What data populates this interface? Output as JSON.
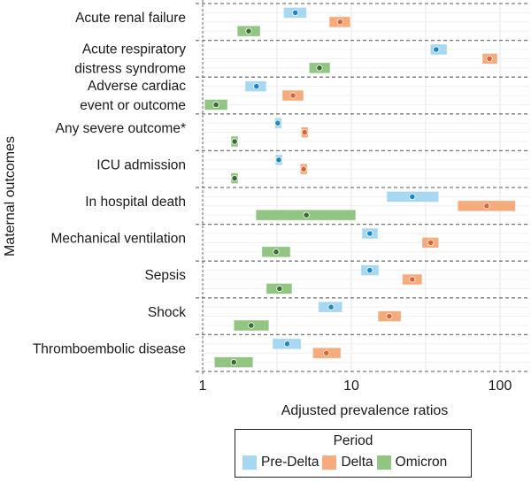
{
  "chart_data": {
    "type": "forest",
    "title": "",
    "xlabel": "Adjusted prevalence ratios",
    "ylabel": "Maternal outcomes",
    "xscale": "log",
    "xlim": [
      1,
      160
    ],
    "xticks": [
      1,
      10,
      100
    ],
    "xtick_labels": [
      "1",
      "10",
      "100"
    ],
    "minor_gridlines": [
      3.16,
      31.6
    ],
    "grid": true,
    "legend": {
      "title": "Period",
      "placement": "bottom",
      "entries": [
        "Pre-Delta",
        "Delta",
        "Omicron"
      ]
    },
    "colors": {
      "Pre-Delta": {
        "box": "#A8D7F1",
        "dot": "#1B86C9"
      },
      "Delta": {
        "box": "#F6AB7C",
        "dot": "#E0622E"
      },
      "Omicron": {
        "box": "#92C582",
        "dot": "#3A6B35"
      }
    },
    "categories": [
      {
        "label": [
          "Acute renal failure"
        ]
      },
      {
        "label": [
          "Acute respiratory",
          "distress syndrome"
        ]
      },
      {
        "label": [
          "Adverse cardiac",
          "event or outcome"
        ]
      },
      {
        "label": [
          "Any severe outcome*"
        ]
      },
      {
        "label": [
          "ICU admission"
        ]
      },
      {
        "label": [
          "In hospital death"
        ]
      },
      {
        "label": [
          "Mechanical ventilation"
        ]
      },
      {
        "label": [
          "Sepsis"
        ]
      },
      {
        "label": [
          "Shock"
        ]
      },
      {
        "label": [
          "Thromboembolic disease"
        ]
      }
    ],
    "series": [
      {
        "name": "Pre-Delta",
        "points": [
          {
            "est": 4.2,
            "lo": 3.5,
            "hi": 5.0
          },
          {
            "est": 37.2,
            "lo": 34.0,
            "hi": 44.0
          },
          {
            "est": 2.3,
            "lo": 1.93,
            "hi": 2.68
          },
          {
            "est": 3.2,
            "lo": 3.05,
            "hi": 3.35
          },
          {
            "est": 3.25,
            "lo": 3.08,
            "hi": 3.42
          },
          {
            "est": 25.7,
            "lo": 17.3,
            "hi": 38.7
          },
          {
            "est": 13.3,
            "lo": 11.8,
            "hi": 15.1
          },
          {
            "est": 13.3,
            "lo": 11.6,
            "hi": 15.3
          },
          {
            "est": 7.3,
            "lo": 6.0,
            "hi": 8.7
          },
          {
            "est": 3.7,
            "lo": 2.95,
            "hi": 4.6
          }
        ]
      },
      {
        "name": "Delta",
        "points": [
          {
            "est": 8.4,
            "lo": 7.1,
            "hi": 9.85
          },
          {
            "est": 84.9,
            "lo": 76.0,
            "hi": 96.0
          },
          {
            "est": 4.05,
            "lo": 3.43,
            "hi": 4.77
          },
          {
            "est": 4.85,
            "lo": 4.6,
            "hi": 5.1
          },
          {
            "est": 4.78,
            "lo": 4.53,
            "hi": 5.05
          },
          {
            "est": 81.3,
            "lo": 51.9,
            "hi": 127.0
          },
          {
            "est": 34.2,
            "lo": 29.9,
            "hi": 38.7
          },
          {
            "est": 25.7,
            "lo": 22.0,
            "hi": 29.9
          },
          {
            "est": 18.0,
            "lo": 15.1,
            "hi": 21.6
          },
          {
            "est": 6.8,
            "lo": 5.5,
            "hi": 8.5
          }
        ]
      },
      {
        "name": "Omicron",
        "points": [
          {
            "est": 2.04,
            "lo": 1.71,
            "hi": 2.44
          },
          {
            "est": 6.1,
            "lo": 5.2,
            "hi": 7.2
          },
          {
            "est": 1.23,
            "lo": 1.03,
            "hi": 1.47
          },
          {
            "est": 1.64,
            "lo": 1.55,
            "hi": 1.73
          },
          {
            "est": 1.64,
            "lo": 1.55,
            "hi": 1.73
          },
          {
            "est": 4.98,
            "lo": 2.28,
            "hi": 10.7
          },
          {
            "est": 3.12,
            "lo": 2.5,
            "hi": 3.89
          },
          {
            "est": 3.29,
            "lo": 2.68,
            "hi": 3.99
          },
          {
            "est": 2.12,
            "lo": 1.62,
            "hi": 2.79
          },
          {
            "est": 1.62,
            "lo": 1.2,
            "hi": 2.18
          }
        ]
      }
    ]
  }
}
